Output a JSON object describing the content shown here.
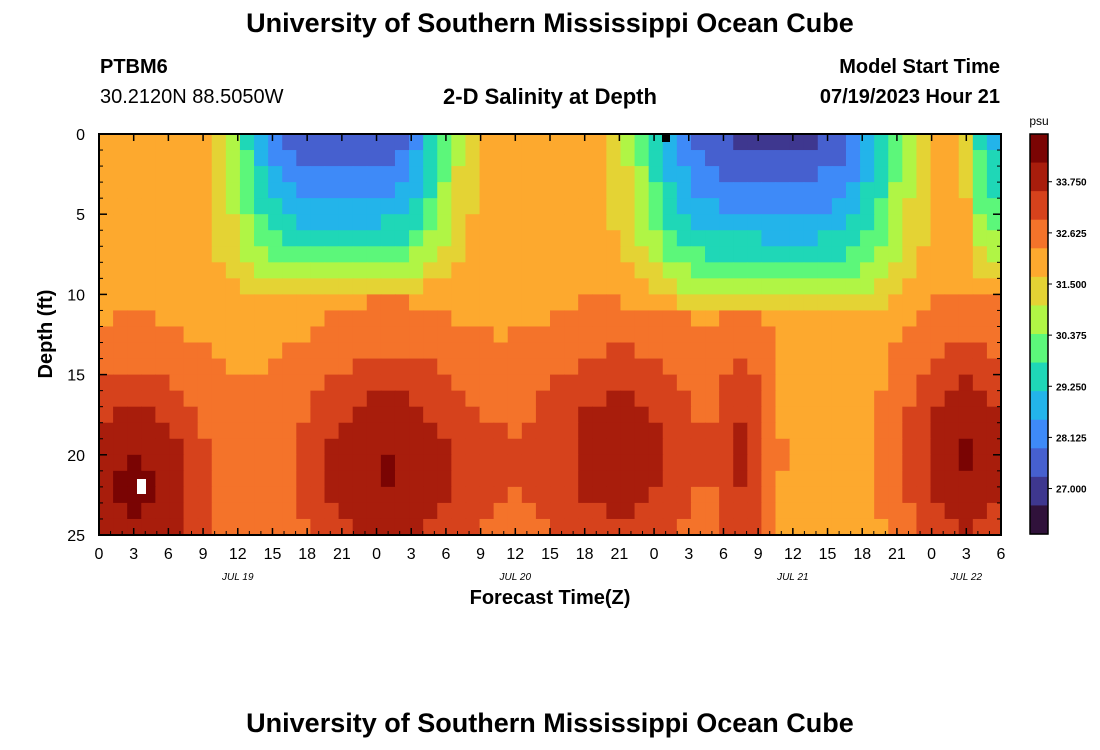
{
  "header": {
    "title": "University of Southern Mississippi Ocean Cube",
    "station_id": "PTBM6",
    "station_coords": "30.2120N  88.5050W",
    "subtitle": "2-D Salinity at Depth",
    "model_start_label": "Model Start Time",
    "model_start_value": "07/19/2023 Hour 21"
  },
  "footer": {
    "title": "University of Southern Mississippi Ocean Cube"
  },
  "chart_data": {
    "type": "heatmap",
    "title": "2-D Salinity at Depth",
    "xlabel": "Forecast Time(Z)",
    "ylabel": "Depth (ft)",
    "x_tick_labels": [
      "0",
      "3",
      "6",
      "9",
      "12",
      "15",
      "18",
      "21",
      "0",
      "3",
      "6",
      "9",
      "12",
      "15",
      "18",
      "21",
      "0",
      "3",
      "6",
      "9",
      "12",
      "15",
      "18",
      "21",
      "0",
      "3",
      "6"
    ],
    "date_labels": [
      {
        "label": "JUL 19",
        "hour": 12
      },
      {
        "label": "JUL 20",
        "hour": 36
      },
      {
        "label": "JUL 21",
        "hour": 60
      },
      {
        "label": "JUL 22",
        "hour": 75
      }
    ],
    "x_range_hours": [
      0,
      78
    ],
    "y_range_ft": [
      0,
      25
    ],
    "y_ticks": [
      0,
      5,
      10,
      15,
      20,
      25
    ],
    "colorbar": {
      "unit": "psu",
      "ticks": [
        "33.750",
        "32.625",
        "31.500",
        "30.375",
        "29.250",
        "28.125",
        "27.000"
      ],
      "range": [
        26.0,
        34.8
      ],
      "colors": [
        "#30123b",
        "#3e378f",
        "#4660cf",
        "#3e8af8",
        "#23b4ea",
        "#1fd7b7",
        "#5cf77a",
        "#b0f545",
        "#e4d334",
        "#fda92e",
        "#f4732a",
        "#d6421c",
        "#a81d0c",
        "#7a0403"
      ]
    },
    "grid_cols": 64,
    "grid_rows": 25,
    "salinity_model": {
      "surface_lows": [
        {
          "center_hour": 21,
          "half_width_hours": 9,
          "max_depth_ft": 10,
          "min_value": 27.0
        },
        {
          "center_hour": 58,
          "half_width_hours": 11,
          "max_depth_ft": 11,
          "min_value": 26.8
        },
        {
          "center_hour": 78,
          "half_width_hours": 2.5,
          "max_depth_ft": 10,
          "min_value": 28.8
        }
      ],
      "deep_highs": [
        {
          "center_hour": 3,
          "half_width_hours": 7,
          "depth_ft": 22,
          "max_value": 34.6
        },
        {
          "center_hour": 25,
          "half_width_hours": 9,
          "depth_ft": 21,
          "max_value": 34.5
        },
        {
          "center_hour": 45,
          "half_width_hours": 8,
          "depth_ft": 20,
          "max_value": 34.2
        },
        {
          "center_hour": 56,
          "half_width_hours": 2.5,
          "depth_ft": 20,
          "max_value": 33.6
        },
        {
          "center_hour": 75,
          "half_width_hours": 6,
          "depth_ft": 20,
          "max_value": 34.5
        }
      ],
      "background_value": 32.0
    }
  }
}
